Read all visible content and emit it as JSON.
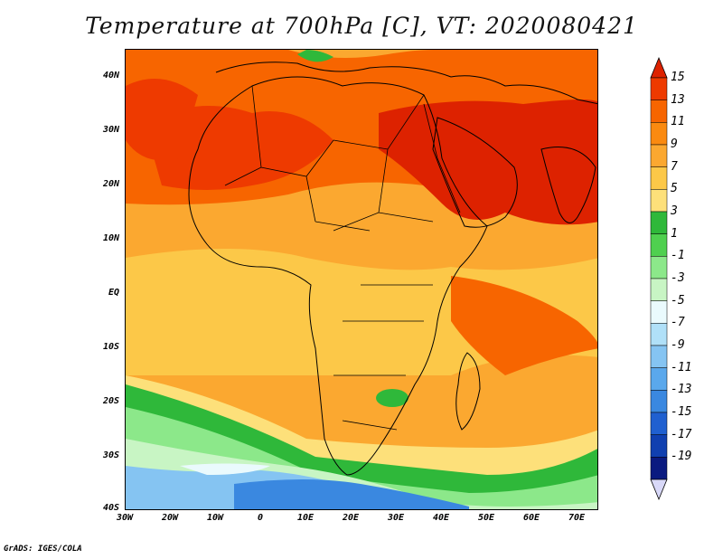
{
  "title": "Temperature at 700hPa [C], VT: 2020080421",
  "credit": "GrADS: IGES/COLA",
  "lat_ticks": [
    "40N",
    "30N",
    "20N",
    "10N",
    "EQ",
    "10S",
    "20S",
    "30S",
    "40S"
  ],
  "lon_ticks": [
    "30W",
    "20W",
    "10W",
    "0",
    "10E",
    "20E",
    "30E",
    "40E",
    "50E",
    "60E",
    "70E"
  ],
  "colorbar": {
    "labels": [
      "15",
      "13",
      "11",
      "9",
      "7",
      "5",
      "3",
      "1",
      "-1",
      "-3",
      "-5",
      "-7",
      "-9",
      "-11",
      "-13",
      "-15",
      "-17",
      "-19"
    ],
    "colors": [
      "#dd2200",
      "#ee3a00",
      "#f76500",
      "#fa8a10",
      "#fba830",
      "#fcc848",
      "#fde07a",
      "#2fb83a",
      "#4fd04f",
      "#8ce88a",
      "#c8f5c4",
      "#eafafd",
      "#b0e0f8",
      "#85c4f2",
      "#5aa8ec",
      "#3a88e0",
      "#2060d0",
      "#1040b0",
      "#0a1a80",
      "#d8d8f8"
    ]
  }
}
